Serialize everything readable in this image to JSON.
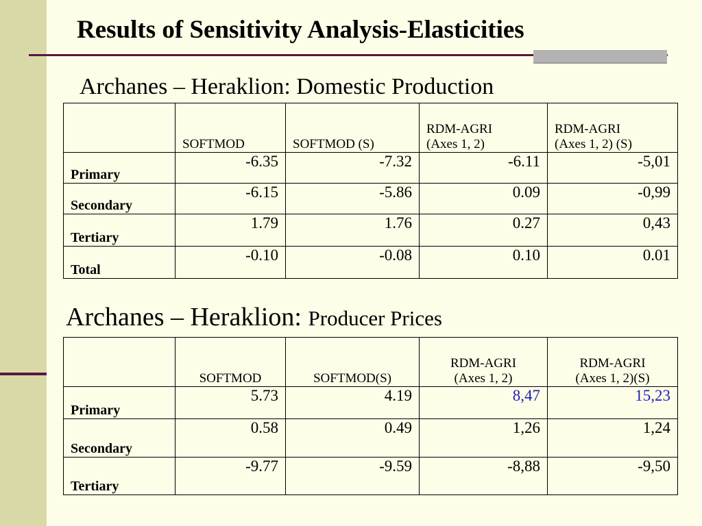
{
  "slide": {
    "title": "Results of Sensitivity Analysis-Elasticities"
  },
  "section1": {
    "title": "Archanes – Heraklion: Domestic Production",
    "headers": [
      "",
      "SOFTMOD",
      "SOFTMOD (S)",
      "RDM-AGRI\n(Axes 1, 2)",
      "RDM-AGRI\n(Axes 1, 2) (S)"
    ],
    "rows": [
      {
        "label": "Primary",
        "values": [
          "-6.35",
          "-7.32",
          "-6.11",
          "-5,01"
        ]
      },
      {
        "label": "Secondary",
        "values": [
          "-6.15",
          "-5.86",
          "0.09",
          "-0,99"
        ]
      },
      {
        "label": "Tertiary",
        "values": [
          "1.79",
          "1.76",
          "0.27",
          "0,43"
        ]
      },
      {
        "label": "Total",
        "values": [
          "-0.10",
          "-0.08",
          "0.10",
          "0.01"
        ]
      }
    ]
  },
  "section2": {
    "title_main": "Archanes – Heraklion: ",
    "title_sub": "Producer Prices",
    "headers": [
      "",
      "SOFTMOD",
      "SOFTMOD(S)",
      "RDM-AGRI\n(Axes 1, 2)",
      "RDM-AGRI\n(Axes 1, 2)(S)"
    ],
    "rows": [
      {
        "label": "Primary",
        "values": [
          "5.73",
          "4.19",
          "8,47",
          "15,23"
        ]
      },
      {
        "label": "Secondary",
        "values": [
          "0.58",
          "0.49",
          "1,26",
          "1,24"
        ]
      },
      {
        "label": "Tertiary",
        "values": [
          "-9.77",
          "-9.59",
          "-8,88",
          "-9,50"
        ]
      }
    ]
  },
  "colors": {
    "background": "#fdfde8",
    "left_band": "#d9d9a8",
    "rule": "#5a1440",
    "highlight_value": "#1f1fb8"
  }
}
